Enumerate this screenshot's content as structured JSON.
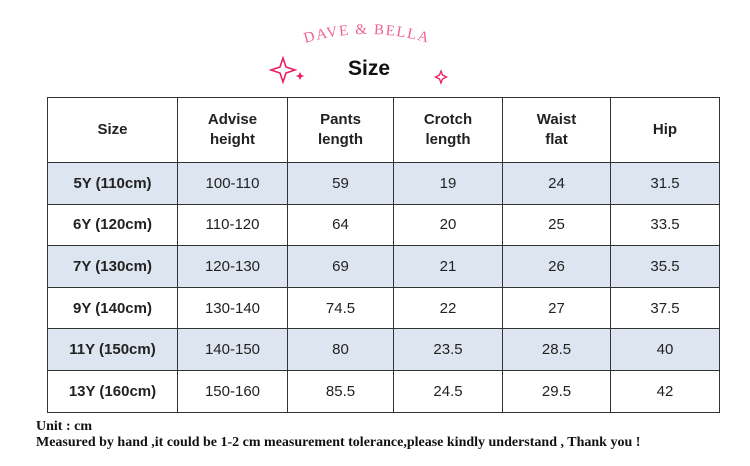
{
  "brand": "DAVE & BELLA",
  "title": "Size",
  "table": {
    "header": [
      [
        "Size"
      ],
      [
        "Advise",
        "height"
      ],
      [
        "Pants",
        "length"
      ],
      [
        "Crotch",
        "length"
      ],
      [
        "Waist",
        "flat"
      ],
      [
        "Hip"
      ]
    ],
    "rows": [
      [
        "5Y (110cm)",
        "100-110",
        "59",
        "19",
        "24",
        "31.5"
      ],
      [
        "6Y (120cm)",
        "110-120",
        "64",
        "20",
        "25",
        "33.5"
      ],
      [
        "7Y (130cm)",
        "120-130",
        "69",
        "21",
        "26",
        "35.5"
      ],
      [
        "9Y (140cm)",
        "130-140",
        "74.5",
        "22",
        "27",
        "37.5"
      ],
      [
        "11Y (150cm)",
        "140-150",
        "80",
        "23.5",
        "28.5",
        "40"
      ],
      [
        "13Y (160cm)",
        "150-160",
        "85.5",
        "24.5",
        "29.5",
        "42"
      ]
    ]
  },
  "notes": [
    "Unit : cm",
    "Measured by hand ,it could be 1-2 cm measurement tolerance,please kindly understand , Thank you !"
  ]
}
